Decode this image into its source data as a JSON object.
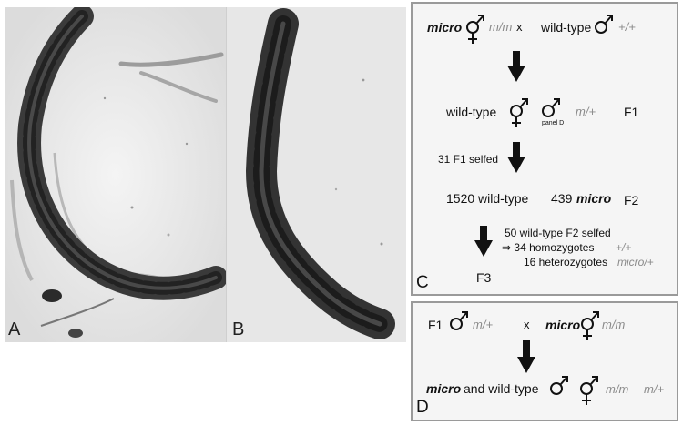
{
  "panel_a": {
    "letter": "A"
  },
  "panel_b": {
    "letter": "B"
  },
  "panel_c": {
    "letter": "C",
    "cross_micro": "micro",
    "cross_micro_genotype": "m/m",
    "cross_x": "x",
    "cross_wildtype": "wild-type",
    "cross_wildtype_genotype": "+/+",
    "f1_phenotype": "wild-type",
    "f1_small_note": "panel D",
    "f1_genotype": "m/+",
    "f1_label": "F1",
    "selfed_note": "31 F1 selfed",
    "f2_wildtype_count": "1520 wild-type",
    "f2_micro_count": "439",
    "f2_micro_word": "micro",
    "f2_label": "F2",
    "f2_selfed_note": "50 wild-type F2 selfed",
    "homozygote_prefix": "⇒ 34 homozygotes",
    "homozygote_genotype": "+/+",
    "heterozygote_text": "16 heterozygotes",
    "heterozygote_genotype": "micro/+",
    "f3_label": "F3"
  },
  "panel_d": {
    "letter": "D",
    "f1_label": "F1",
    "f1_genotype": "m/+",
    "cross_x": "x",
    "micro_word": "micro",
    "micro_genotype": "m/m",
    "result_micro": "micro",
    "result_and": "and wild-type",
    "result_genotype_1": "m/m",
    "result_genotype_2": "m/+"
  },
  "colors": {
    "box_fill": "#f5f5f5",
    "box_border": "#9a9a9a",
    "genotype_gray": "#8a8a8a"
  }
}
